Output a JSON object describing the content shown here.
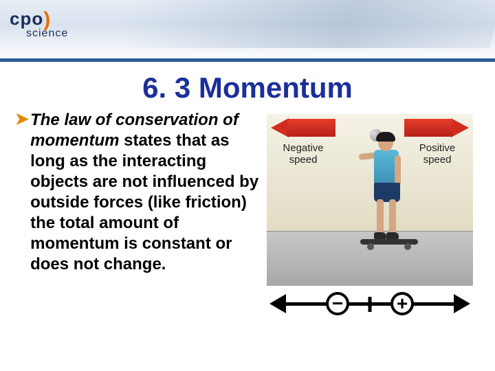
{
  "logo": {
    "brand": "cpo",
    "sub": "science"
  },
  "title": "6. 3 Momentum",
  "body": {
    "italic_phrase": "The law of conservation of momentum",
    "rest": " states that as long as the interacting objects are not influenced by outside forces (like friction) the total amount of momentum is constant or does not change."
  },
  "figure": {
    "label_negative": "Negative speed",
    "label_positive": "Positive speed",
    "minus": "−",
    "plus": "+",
    "colors": {
      "arrow": "#d12c1e",
      "sky": "#e2dcc4",
      "ground": "#a8a8a8",
      "shirt": "#5ab9d8",
      "shorts": "#1e3a66"
    }
  }
}
